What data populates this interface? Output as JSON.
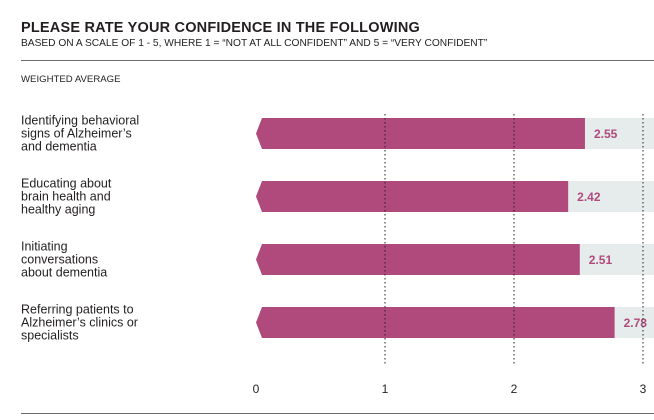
{
  "header": {
    "title": "PLEASE RATE YOUR CONFIDENCE IN THE FOLLOWING",
    "subtitle": "BASED ON A SCALE OF 1 - 5, WHERE 1 = “NOT AT ALL CONFIDENT” AND 5 = “VERY CONFIDENT”",
    "metric": "WEIGHTED AVERAGE"
  },
  "colors": {
    "bar": "#b04a7d",
    "track": "#e6ebeb",
    "value_text": "#b04a7d",
    "grid": "#231f20"
  },
  "chart_data": {
    "type": "bar",
    "orientation": "horizontal",
    "title": "PLEASE RATE YOUR CONFIDENCE IN THE FOLLOWING",
    "subtitle": "BASED ON A SCALE OF 1 - 5, WHERE 1 = “NOT AT ALL CONFIDENT” AND 5 = “VERY CONFIDENT”",
    "xlabel": "",
    "ylabel": "WEIGHTED AVERAGE",
    "xlim": [
      0,
      3
    ],
    "xticks": [
      "0",
      "1",
      "2",
      "3"
    ],
    "grid": "vertical-dotted",
    "categories": [
      [
        "Identifying behavioral",
        "signs of Alzheimer’s",
        "and dementia"
      ],
      [
        "Educating about",
        "brain health and",
        "healthy aging"
      ],
      [
        "Initiating",
        "conversations",
        "about dementia"
      ],
      [
        "Referring patients to",
        "Alzheimer’s clinics or",
        "specialists"
      ]
    ],
    "values": [
      2.55,
      2.42,
      2.51,
      2.78
    ],
    "value_labels": [
      "2.55",
      "2.42",
      "2.51",
      "2.78"
    ]
  }
}
